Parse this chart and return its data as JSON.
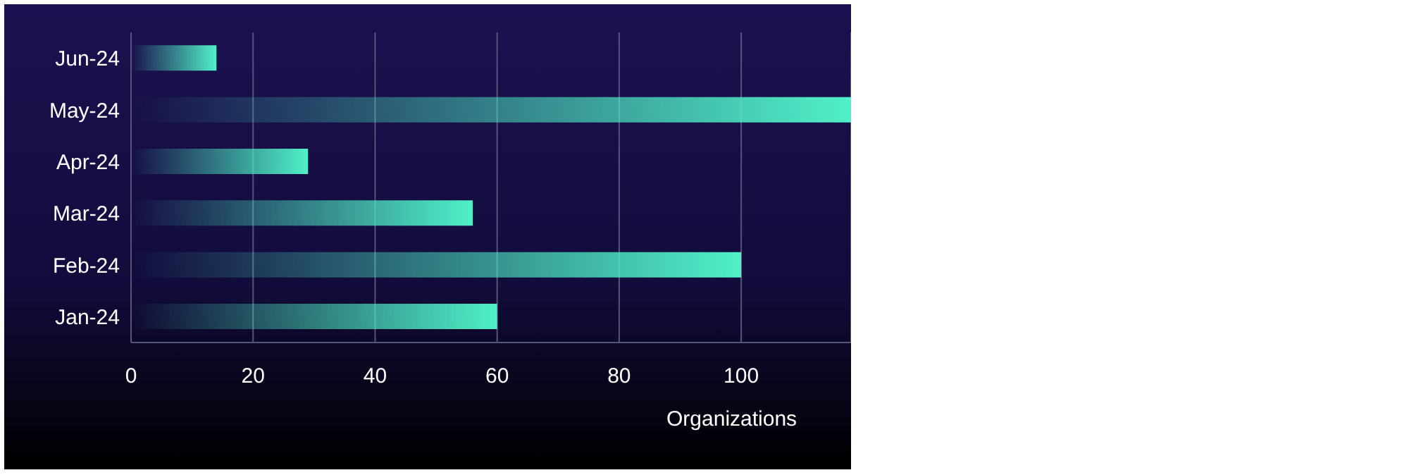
{
  "chart_data": {
    "type": "bar",
    "orientation": "horizontal",
    "xlabel": "Organizations",
    "categories": [
      "Jun-24",
      "May-24",
      "Apr-24",
      "Mar-24",
      "Feb-24",
      "Jan-24"
    ],
    "values": [
      14,
      118,
      29,
      56,
      100,
      60
    ],
    "color": "#50f0c8",
    "xlim": [
      0,
      118
    ],
    "xticks": [
      0,
      20,
      40,
      60,
      80,
      100
    ],
    "grid": "x"
  }
}
